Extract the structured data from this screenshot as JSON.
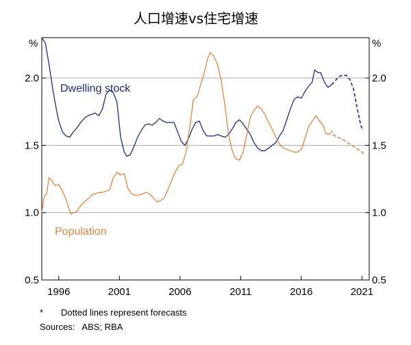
{
  "chart_data": {
    "type": "line",
    "title": "人口增速vs住宅增速",
    "unit_left": "%",
    "unit_right": "%",
    "ylim": [
      0.5,
      2.3
    ],
    "yticks": [
      0.5,
      1.0,
      1.5,
      2.0
    ],
    "ytick_labels": [
      "0.5",
      "1.0",
      "1.5",
      "2.0"
    ],
    "xlim": [
      1994.6,
      2021.6
    ],
    "xticks": [
      1996,
      2001,
      2006,
      2011,
      2016,
      2021
    ],
    "xtick_labels": [
      "1996",
      "2001",
      "2006",
      "2011",
      "2016",
      "2021"
    ],
    "grid": true,
    "colors": {
      "dwelling": "#1b2a8c",
      "population": "#e8833a",
      "grid": "#a9a9a9"
    },
    "series": [
      {
        "name": "Dwelling stock",
        "color": "#1b2a8c",
        "values": [
          [
            1994.6,
            2.3
          ],
          [
            1994.9,
            2.26
          ],
          [
            1995.2,
            2.1
          ],
          [
            1995.5,
            1.92
          ],
          [
            1995.8,
            1.77
          ],
          [
            1996.0,
            1.68
          ],
          [
            1996.3,
            1.6
          ],
          [
            1996.6,
            1.57
          ],
          [
            1996.9,
            1.56
          ],
          [
            1997.2,
            1.6
          ],
          [
            1997.5,
            1.63
          ],
          [
            1997.8,
            1.67
          ],
          [
            1998.1,
            1.7
          ],
          [
            1998.4,
            1.72
          ],
          [
            1998.7,
            1.73
          ],
          [
            1999.0,
            1.74
          ],
          [
            1999.3,
            1.72
          ],
          [
            1999.6,
            1.77
          ],
          [
            1999.9,
            1.88
          ],
          [
            2000.2,
            1.91
          ],
          [
            2000.5,
            1.89
          ],
          [
            2000.8,
            1.82
          ],
          [
            2001.1,
            1.56
          ],
          [
            2001.4,
            1.45
          ],
          [
            2001.6,
            1.42
          ],
          [
            2001.9,
            1.43
          ],
          [
            2002.2,
            1.49
          ],
          [
            2002.5,
            1.56
          ],
          [
            2002.8,
            1.61
          ],
          [
            2003.1,
            1.65
          ],
          [
            2003.4,
            1.66
          ],
          [
            2003.7,
            1.65
          ],
          [
            2004.0,
            1.67
          ],
          [
            2004.3,
            1.7
          ],
          [
            2004.6,
            1.68
          ],
          [
            2004.9,
            1.67
          ],
          [
            2005.2,
            1.67
          ],
          [
            2005.5,
            1.67
          ],
          [
            2005.8,
            1.6
          ],
          [
            2006.1,
            1.53
          ],
          [
            2006.4,
            1.5
          ],
          [
            2006.7,
            1.55
          ],
          [
            2007.0,
            1.62
          ],
          [
            2007.3,
            1.67
          ],
          [
            2007.6,
            1.68
          ],
          [
            2007.9,
            1.61
          ],
          [
            2008.2,
            1.57
          ],
          [
            2008.5,
            1.57
          ],
          [
            2008.8,
            1.57
          ],
          [
            2009.1,
            1.58
          ],
          [
            2009.4,
            1.57
          ],
          [
            2009.7,
            1.56
          ],
          [
            2010.0,
            1.58
          ],
          [
            2010.3,
            1.62
          ],
          [
            2010.6,
            1.67
          ],
          [
            2010.9,
            1.69
          ],
          [
            2011.2,
            1.66
          ],
          [
            2011.5,
            1.62
          ],
          [
            2011.8,
            1.58
          ],
          [
            2012.1,
            1.52
          ],
          [
            2012.4,
            1.48
          ],
          [
            2012.7,
            1.46
          ],
          [
            2013.0,
            1.46
          ],
          [
            2013.3,
            1.48
          ],
          [
            2013.6,
            1.5
          ],
          [
            2013.9,
            1.52
          ],
          [
            2014.2,
            1.57
          ],
          [
            2014.5,
            1.61
          ],
          [
            2014.8,
            1.69
          ],
          [
            2015.1,
            1.77
          ],
          [
            2015.4,
            1.84
          ],
          [
            2015.7,
            1.86
          ],
          [
            2016.0,
            1.85
          ],
          [
            2016.3,
            1.9
          ],
          [
            2016.6,
            1.94
          ],
          [
            2016.9,
            1.97
          ],
          [
            2017.1,
            2.06
          ],
          [
            2017.4,
            2.04
          ],
          [
            2017.6,
            2.04
          ],
          [
            2017.9,
            1.97
          ],
          [
            2018.2,
            1.93
          ],
          [
            2018.5,
            1.95
          ]
        ],
        "forecast": [
          [
            2018.5,
            1.95
          ],
          [
            2018.8,
            1.98
          ],
          [
            2019.1,
            2.01
          ],
          [
            2019.4,
            2.02
          ],
          [
            2019.7,
            2.02
          ],
          [
            2020.0,
            1.99
          ],
          [
            2020.3,
            1.92
          ],
          [
            2020.6,
            1.78
          ],
          [
            2020.9,
            1.65
          ],
          [
            2021.1,
            1.61
          ]
        ]
      },
      {
        "name": "Population",
        "color": "#e8833a",
        "values": [
          [
            1994.6,
            1.0
          ],
          [
            1994.8,
            1.12
          ],
          [
            1995.0,
            1.14
          ],
          [
            1995.2,
            1.26
          ],
          [
            1995.4,
            1.24
          ],
          [
            1995.7,
            1.2
          ],
          [
            1996.0,
            1.21
          ],
          [
            1996.3,
            1.16
          ],
          [
            1996.6,
            1.1
          ],
          [
            1996.8,
            1.04
          ],
          [
            1997.0,
            0.99
          ],
          [
            1997.2,
            1.0
          ],
          [
            1997.5,
            1.01
          ],
          [
            1997.8,
            1.05
          ],
          [
            1998.1,
            1.08
          ],
          [
            1998.4,
            1.1
          ],
          [
            1998.7,
            1.13
          ],
          [
            1999.0,
            1.14
          ],
          [
            1999.3,
            1.15
          ],
          [
            1999.6,
            1.15
          ],
          [
            1999.9,
            1.16
          ],
          [
            2000.2,
            1.17
          ],
          [
            2000.5,
            1.26
          ],
          [
            2000.8,
            1.3
          ],
          [
            2001.1,
            1.28
          ],
          [
            2001.4,
            1.29
          ],
          [
            2001.7,
            1.18
          ],
          [
            2002.0,
            1.14
          ],
          [
            2002.3,
            1.13
          ],
          [
            2002.6,
            1.13
          ],
          [
            2002.9,
            1.14
          ],
          [
            2003.2,
            1.15
          ],
          [
            2003.5,
            1.14
          ],
          [
            2003.8,
            1.11
          ],
          [
            2004.1,
            1.08
          ],
          [
            2004.4,
            1.09
          ],
          [
            2004.7,
            1.11
          ],
          [
            2005.0,
            1.17
          ],
          [
            2005.3,
            1.24
          ],
          [
            2005.6,
            1.3
          ],
          [
            2005.9,
            1.35
          ],
          [
            2006.2,
            1.36
          ],
          [
            2006.5,
            1.45
          ],
          [
            2006.8,
            1.63
          ],
          [
            2007.1,
            1.84
          ],
          [
            2007.4,
            1.86
          ],
          [
            2007.7,
            1.95
          ],
          [
            2008.0,
            2.04
          ],
          [
            2008.3,
            2.15
          ],
          [
            2008.5,
            2.19
          ],
          [
            2008.8,
            2.16
          ],
          [
            2009.1,
            2.1
          ],
          [
            2009.4,
            1.98
          ],
          [
            2009.7,
            1.8
          ],
          [
            2010.0,
            1.58
          ],
          [
            2010.3,
            1.46
          ],
          [
            2010.6,
            1.4
          ],
          [
            2010.9,
            1.39
          ],
          [
            2011.2,
            1.45
          ],
          [
            2011.5,
            1.58
          ],
          [
            2011.8,
            1.71
          ],
          [
            2012.1,
            1.76
          ],
          [
            2012.4,
            1.79
          ],
          [
            2012.7,
            1.77
          ],
          [
            2013.0,
            1.73
          ],
          [
            2013.3,
            1.67
          ],
          [
            2013.6,
            1.62
          ],
          [
            2013.9,
            1.56
          ],
          [
            2014.2,
            1.51
          ],
          [
            2014.5,
            1.48
          ],
          [
            2014.8,
            1.47
          ],
          [
            2015.1,
            1.46
          ],
          [
            2015.4,
            1.45
          ],
          [
            2015.7,
            1.45
          ],
          [
            2016.0,
            1.47
          ],
          [
            2016.3,
            1.55
          ],
          [
            2016.6,
            1.64
          ],
          [
            2016.9,
            1.68
          ],
          [
            2017.2,
            1.72
          ],
          [
            2017.5,
            1.68
          ],
          [
            2017.8,
            1.65
          ],
          [
            2018.0,
            1.59
          ],
          [
            2018.3,
            1.58
          ],
          [
            2018.6,
            1.61
          ]
        ],
        "forecast": [
          [
            2018.6,
            1.58
          ],
          [
            2019.0,
            1.56
          ],
          [
            2019.5,
            1.54
          ],
          [
            2020.0,
            1.51
          ],
          [
            2020.5,
            1.48
          ],
          [
            2021.0,
            1.45
          ],
          [
            2021.2,
            1.43
          ]
        ]
      }
    ],
    "labels": {
      "dwelling": "Dwelling stock",
      "population": "Population"
    }
  },
  "footnote": {
    "star": "*",
    "text": "Dotted lines represent forecasts",
    "sources": "Sources:   ABS; RBA"
  }
}
